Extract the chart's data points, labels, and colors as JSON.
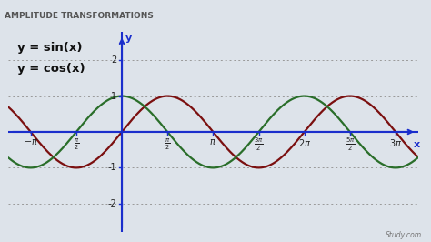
{
  "title": "AMPLITUDE TRANSFORMATIONS",
  "title_fontsize": 6.5,
  "title_color": "#555555",
  "title_bg": "#cdd5dc",
  "label_sin": "y = sin(x)",
  "label_cos": "y = cos(x)",
  "label_fontsize": 10,
  "sin_color": "#7b1010",
  "cos_color": "#2a6e2a",
  "axis_color": "#1a2ecc",
  "background_color": "#dde3ea",
  "plot_bg": "#dde3ea",
  "xlim": [
    -3.9,
    10.2
  ],
  "ylim": [
    -2.8,
    2.8
  ],
  "yticks": [
    -2,
    -1,
    1,
    2
  ],
  "grid_color": "#999999",
  "x_label": "x",
  "y_label": "y"
}
